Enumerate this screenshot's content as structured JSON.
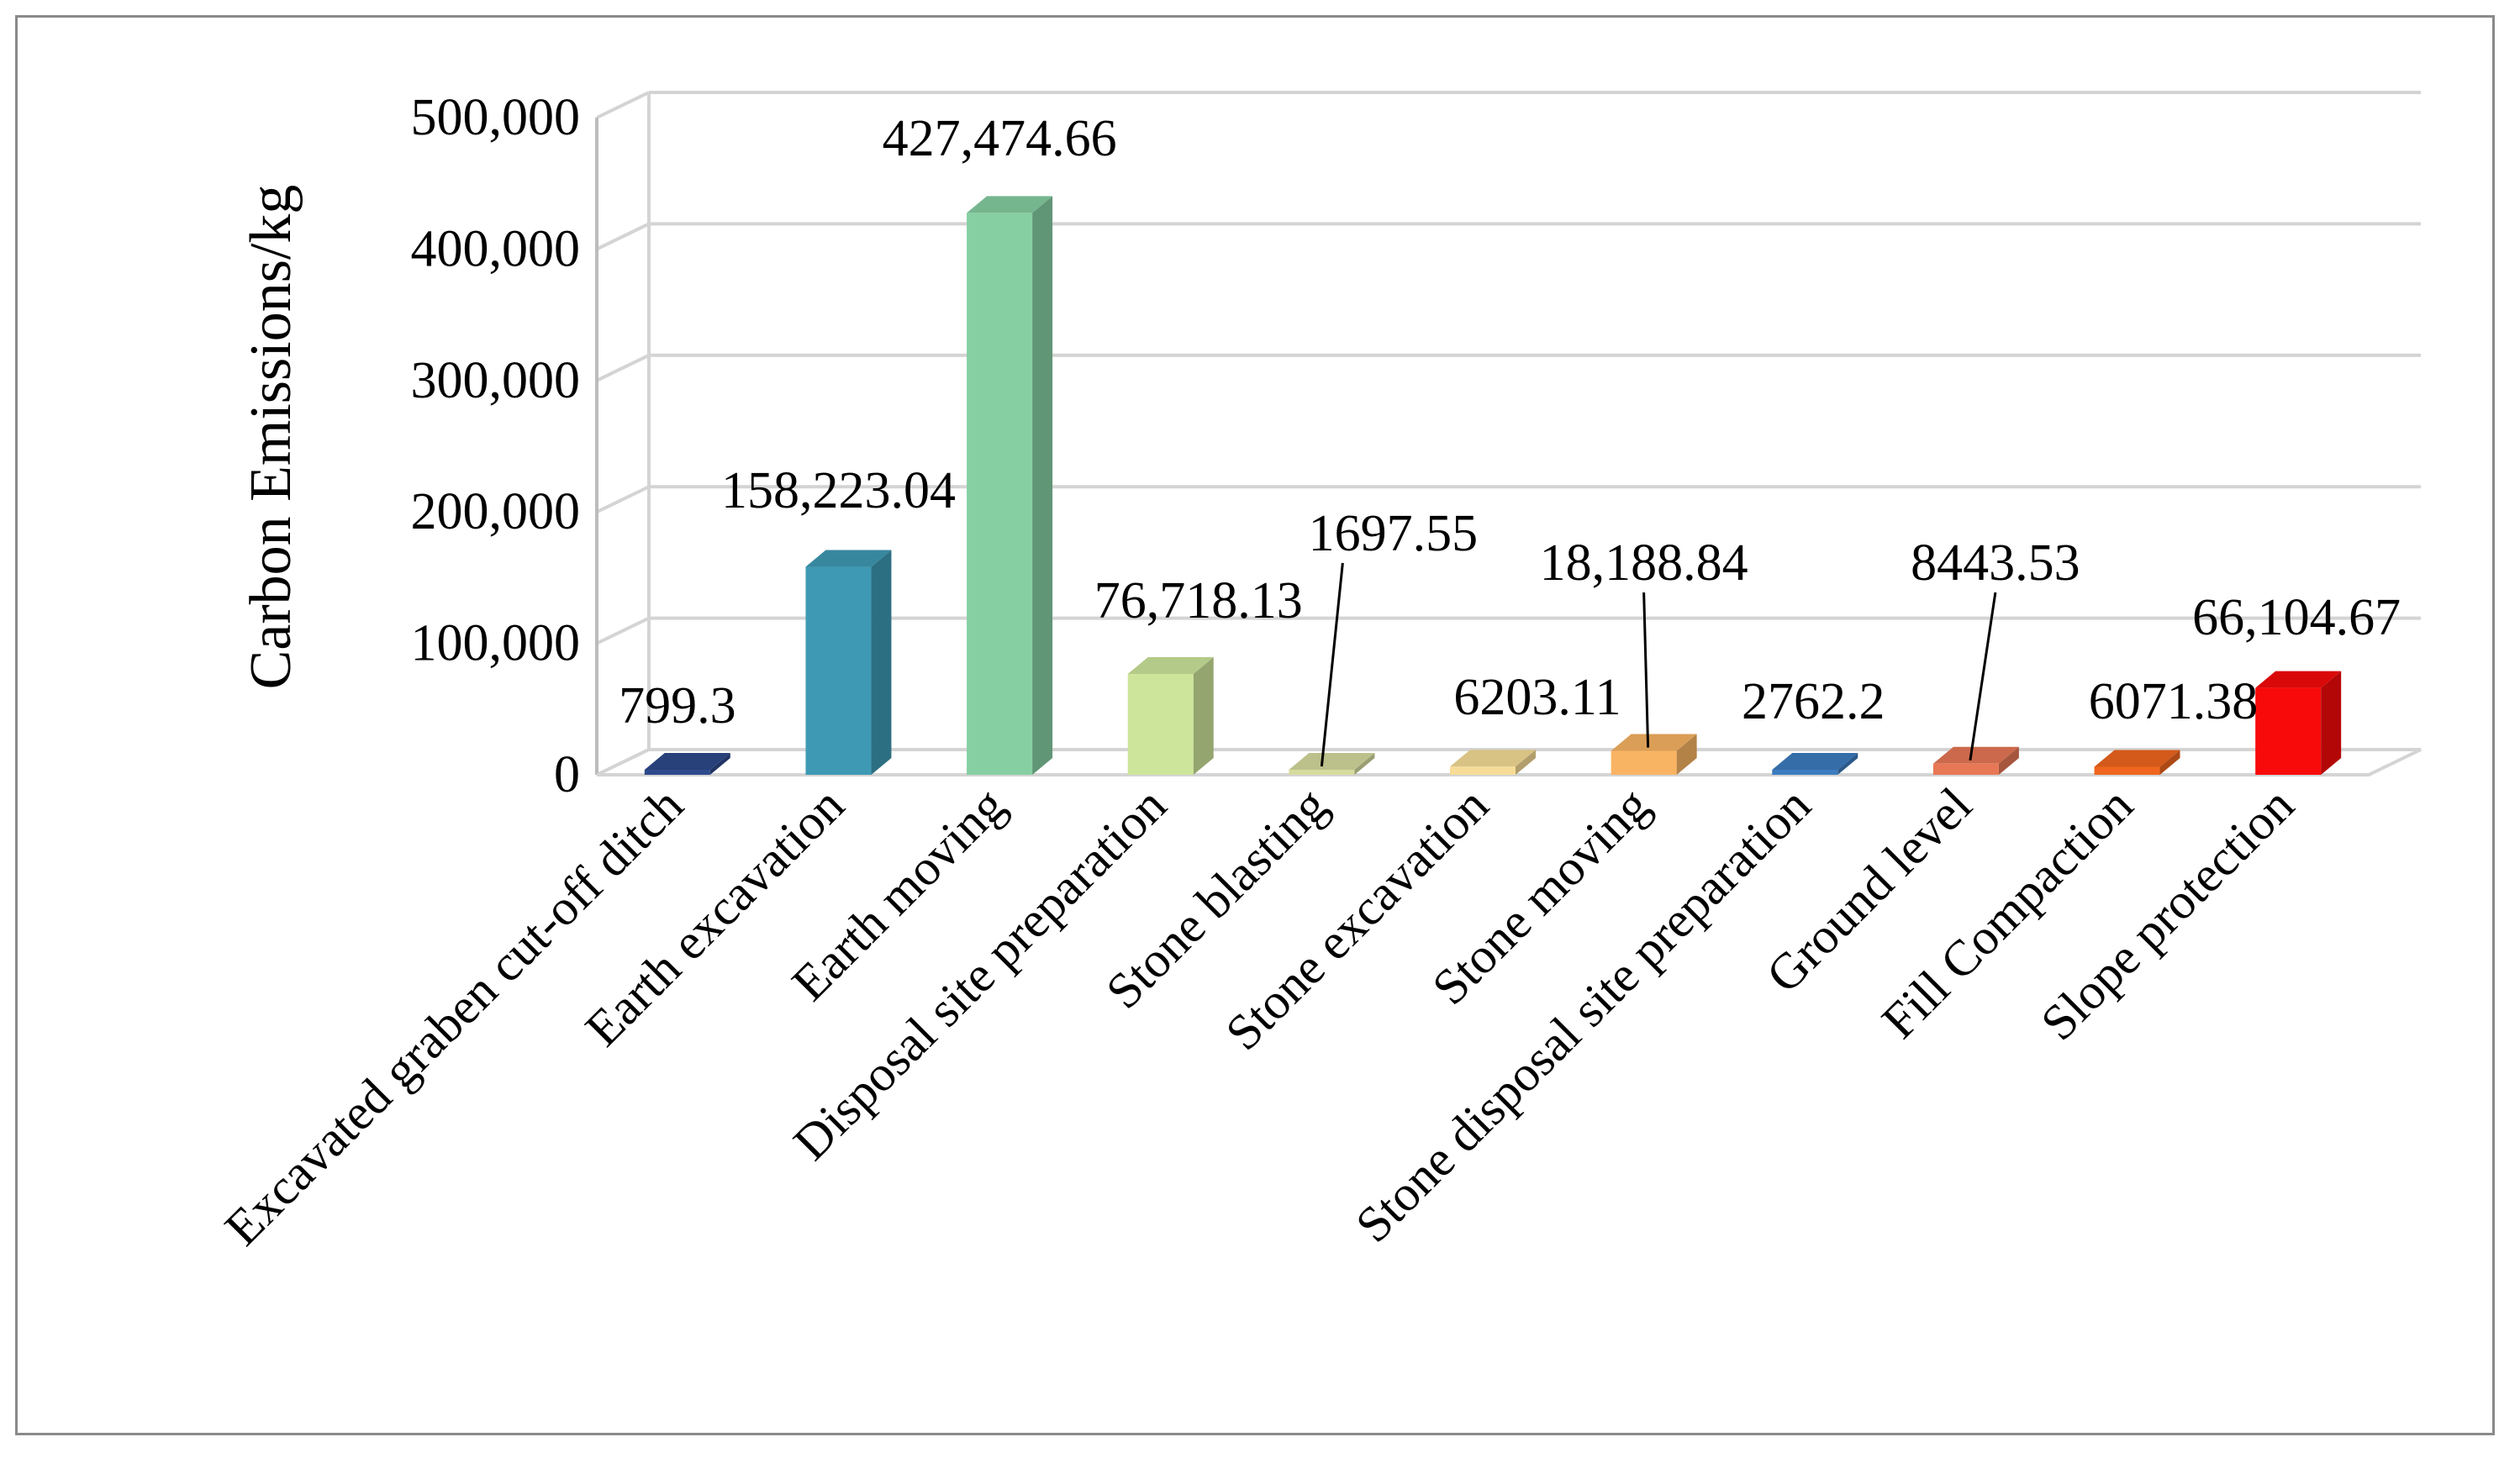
{
  "chart_data": {
    "type": "bar",
    "style": "3d-column",
    "title": "",
    "xlabel": "",
    "ylabel": "Carbon  Emissions/kg",
    "ylim": [
      0,
      500000
    ],
    "yticks": [
      0,
      100000,
      200000,
      300000,
      400000,
      500000
    ],
    "ytick_labels": [
      "0",
      "100,000",
      "200,000",
      "300,000",
      "400,000",
      "500,000"
    ],
    "grid": true,
    "categories": [
      "Excavated graben cut-off ditch",
      "Earth excavation",
      "Earth moving",
      "Disposal site preparation",
      "Stone blasting",
      "Stone excavation",
      "Stone  moving",
      "Stone disposal site preparation",
      "Ground level",
      "Fill Compaction",
      "Slope protection"
    ],
    "values": [
      799.3,
      158223.04,
      427474.66,
      76718.13,
      1697.55,
      6203.11,
      18188.84,
      2762.2,
      8443.53,
      6071.38,
      66104.67
    ],
    "data_labels": [
      "799.3",
      "158,223.04",
      "427,474.66",
      "76,718.13",
      "1697.55",
      "6203.11",
      "18,188.84",
      "2762.2",
      "8443.53",
      "6071.38",
      "66,104.67"
    ],
    "colors": [
      "#2E4A8C",
      "#3E9AB4",
      "#86CFA3",
      "#CDE59A",
      "#D6DB9E",
      "#F6DC96",
      "#F9B463",
      "#3C7CBF",
      "#E87756",
      "#F0661E",
      "#F80A0A"
    ]
  }
}
